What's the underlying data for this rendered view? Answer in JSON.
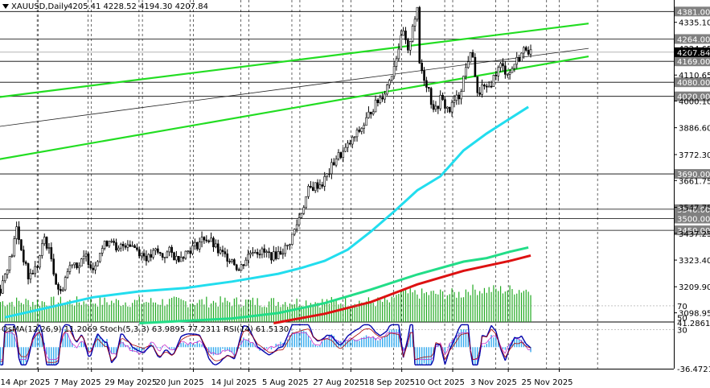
{
  "header": {
    "symbol": "XAUUSD,Daily",
    "ohlc": "4205.41 4228.52 4194.30 4207.84",
    "menu_icon": "triangle-down-icon"
  },
  "indicator_header": "OsMA(12,26,9) 11.2069 Stoch(5,3,3) 63.9895 77.2311 RSI(14) 61.5130",
  "colors": {
    "background": "#ffffff",
    "grid": "#000000",
    "candle": "#000000",
    "channel": "#22dd22",
    "ema_fast": "#22ddee",
    "ema_mid": "#22dd88",
    "ema_slow": "#dd1111",
    "volume": "#22aa22",
    "osma": "#33aaee",
    "stoch_main": "#0000aa",
    "stoch_signal": "#aa0000",
    "rsi": "#cc33cc",
    "level_box": "#808080"
  },
  "chart_data": {
    "type": "candlestick",
    "symbol": "XAUUSD",
    "timeframe": "Daily",
    "last_price": "4207.84",
    "y_range": [
      3060,
      4430
    ],
    "y_ticks": [
      "4335.10",
      "4224.65",
      "4110.65",
      "4000.10",
      "3886.60",
      "3772.30",
      "3661.75",
      "3547.75",
      "3437.25",
      "3323.40",
      "3209.90",
      "3098.95"
    ],
    "level_labels": [
      "4381.00",
      "4264.00",
      "4169.00",
      "4080.00",
      "4020.00",
      "3690.00",
      "3540.00",
      "3500.00",
      "3450.00"
    ],
    "x_ticks": [
      "14 Apr 2025",
      "7 May 2025",
      "29 May 2025",
      "20 Jun 2025",
      "14 Jul 2025",
      "5 Aug 2025",
      "27 Aug 2025",
      "18 Sep 2025",
      "10 Oct 2025",
      "3 Nov 2025",
      "25 Nov 2025"
    ],
    "x_tick_day_offsets": [
      0,
      23,
      45,
      67,
      91,
      113,
      135,
      157,
      179,
      203,
      225
    ],
    "price_path": [
      [
        0,
        3200
      ],
      [
        3,
        3300
      ],
      [
        5,
        3350
      ],
      [
        7,
        3460
      ],
      [
        9,
        3370
      ],
      [
        12,
        3250
      ],
      [
        16,
        3300
      ],
      [
        19,
        3420
      ],
      [
        22,
        3330
      ],
      [
        24,
        3230
      ],
      [
        26,
        3180
      ],
      [
        28,
        3250
      ],
      [
        31,
        3320
      ],
      [
        34,
        3300
      ],
      [
        37,
        3340
      ],
      [
        40,
        3290
      ],
      [
        43,
        3360
      ],
      [
        46,
        3400
      ],
      [
        48,
        3420
      ],
      [
        50,
        3350
      ],
      [
        52,
        3380
      ],
      [
        55,
        3400
      ],
      [
        58,
        3380
      ],
      [
        61,
        3350
      ],
      [
        64,
        3330
      ],
      [
        67,
        3360
      ],
      [
        70,
        3340
      ],
      [
        73,
        3360
      ],
      [
        76,
        3330
      ],
      [
        79,
        3350
      ],
      [
        82,
        3370
      ],
      [
        85,
        3390
      ],
      [
        88,
        3420
      ],
      [
        91,
        3400
      ],
      [
        94,
        3360
      ],
      [
        97,
        3340
      ],
      [
        100,
        3330
      ],
      [
        103,
        3280
      ],
      [
        106,
        3330
      ],
      [
        109,
        3370
      ],
      [
        112,
        3360
      ],
      [
        115,
        3350
      ],
      [
        118,
        3340
      ],
      [
        121,
        3360
      ],
      [
        124,
        3380
      ],
      [
        127,
        3450
      ],
      [
        130,
        3530
      ],
      [
        133,
        3620
      ],
      [
        136,
        3640
      ],
      [
        139,
        3650
      ],
      [
        142,
        3700
      ],
      [
        145,
        3760
      ],
      [
        148,
        3780
      ],
      [
        151,
        3820
      ],
      [
        154,
        3860
      ],
      [
        157,
        3900
      ],
      [
        160,
        3960
      ],
      [
        163,
        4000
      ],
      [
        166,
        4040
      ],
      [
        169,
        4120
      ],
      [
        172,
        4230
      ],
      [
        174,
        4290
      ],
      [
        176,
        4200
      ],
      [
        178,
        4330
      ],
      [
        180,
        4380
      ],
      [
        181,
        4160
      ],
      [
        183,
        4100
      ],
      [
        185,
        4050
      ],
      [
        186,
        4000
      ],
      [
        188,
        3960
      ],
      [
        190,
        4010
      ],
      [
        192,
        3980
      ],
      [
        194,
        3960
      ],
      [
        196,
        4000
      ],
      [
        198,
        4020
      ],
      [
        200,
        4100
      ],
      [
        202,
        4180
      ],
      [
        204,
        4200
      ],
      [
        206,
        4020
      ],
      [
        208,
        4060
      ],
      [
        210,
        4040
      ],
      [
        212,
        4080
      ],
      [
        214,
        4120
      ],
      [
        216,
        4150
      ],
      [
        218,
        4130
      ],
      [
        220,
        4120
      ],
      [
        222,
        4160
      ],
      [
        225,
        4200
      ],
      [
        227,
        4230
      ],
      [
        229,
        4207.84
      ]
    ],
    "series": [
      {
        "type": "line",
        "points": [
          [
            2,
            3080
          ],
          [
            20,
            3120
          ],
          [
            40,
            3165
          ],
          [
            60,
            3190
          ],
          [
            80,
            3205
          ],
          [
            100,
            3232
          ],
          [
            120,
            3265
          ],
          [
            130,
            3290
          ],
          [
            140,
            3320
          ],
          [
            150,
            3368
          ],
          [
            160,
            3445
          ],
          [
            170,
            3530
          ],
          [
            180,
            3620
          ],
          [
            190,
            3680
          ],
          [
            200,
            3790
          ],
          [
            210,
            3862
          ],
          [
            220,
            3925
          ],
          [
            228,
            3975
          ]
        ]
      },
      {
        "type": "line",
        "points": [
          [
            60,
            3055
          ],
          [
            100,
            3075
          ],
          [
            120,
            3098
          ],
          [
            140,
            3140
          ],
          [
            160,
            3198
          ],
          [
            180,
            3262
          ],
          [
            200,
            3317
          ],
          [
            210,
            3332
          ],
          [
            220,
            3359
          ],
          [
            228,
            3377
          ]
        ]
      },
      {
        "type": "line",
        "points": [
          [
            118,
            3055
          ],
          [
            140,
            3095
          ],
          [
            160,
            3145
          ],
          [
            180,
            3220
          ],
          [
            200,
            3278
          ],
          [
            220,
            3320
          ],
          [
            229,
            3343
          ]
        ]
      }
    ],
    "trendlines": [
      {
        "from": [
          -2,
          3750
        ],
        "to": [
          254,
          4190
        ]
      },
      {
        "from": [
          -2,
          4015
        ],
        "to": [
          254,
          4330
        ]
      },
      {
        "from": [
          -2,
          3890
        ],
        "to": [
          254,
          4224
        ]
      }
    ],
    "volume": "histogram",
    "lower_panel_y_ticks": [
      "41.2861",
      "70",
      "50",
      "30",
      "-36.4721"
    ],
    "lower_panel_y_range": [
      -36.4721,
      41.2861
    ]
  }
}
